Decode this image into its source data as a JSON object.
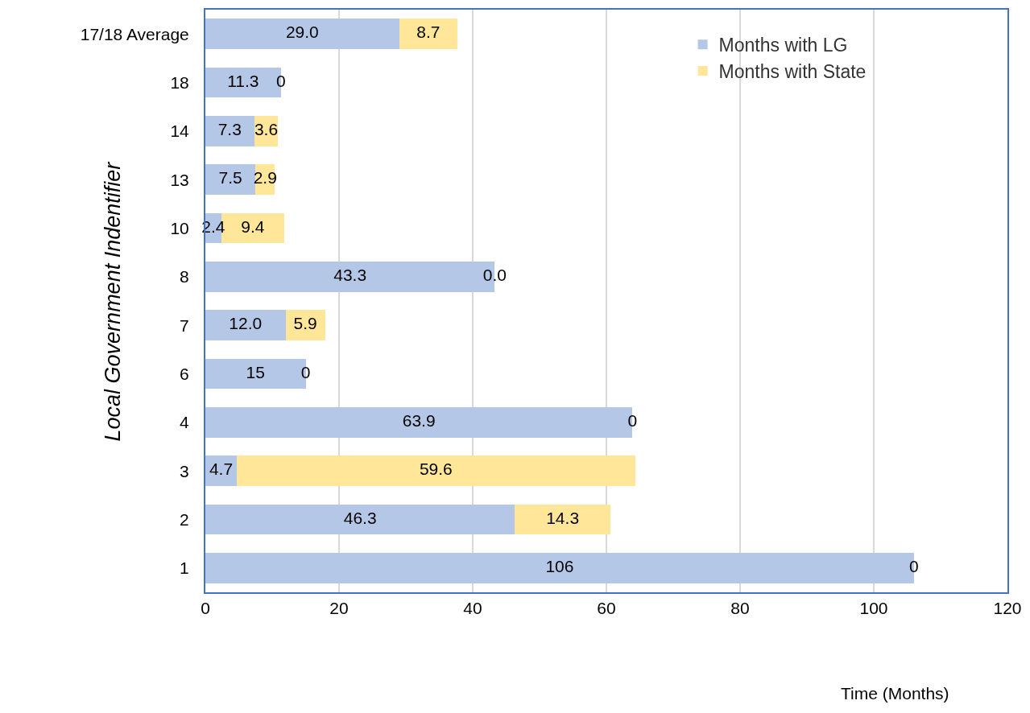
{
  "chart_data": {
    "type": "bar",
    "orientation": "horizontal",
    "stacked": true,
    "categories": [
      "17/18 Average",
      "18",
      "14",
      "13",
      "10",
      "8",
      "7",
      "6",
      "4",
      "3",
      "2",
      "1"
    ],
    "series": [
      {
        "name": "Months with LG",
        "color": "#b4c7e7",
        "values": [
          29.0,
          11.3,
          7.3,
          7.5,
          2.4,
          43.3,
          12.0,
          15,
          63.9,
          4.7,
          46.3,
          106
        ],
        "value_labels": [
          "29.0",
          "11.3",
          "7.3",
          "7.5",
          "2.4",
          "43.3",
          "12.0",
          "15",
          "63.9",
          "4.7",
          "46.3",
          "106"
        ]
      },
      {
        "name": "Months with State",
        "color": "#ffe699",
        "values": [
          8.7,
          0,
          3.6,
          2.9,
          9.4,
          0.0,
          5.9,
          0,
          0,
          59.6,
          14.3,
          0
        ],
        "value_labels": [
          "8.7",
          "0",
          "3.6",
          "2.9",
          "9.4",
          "0.0",
          "5.9",
          "0",
          "0",
          "59.6",
          "14.3",
          "0"
        ]
      }
    ],
    "xlim": [
      0,
      120
    ],
    "xticks": [
      0,
      20,
      40,
      60,
      80,
      100,
      120
    ],
    "xlabel": "Time (Months)",
    "ylabel": "Local Government Indentifier",
    "grid": "x",
    "legend": "top right"
  }
}
